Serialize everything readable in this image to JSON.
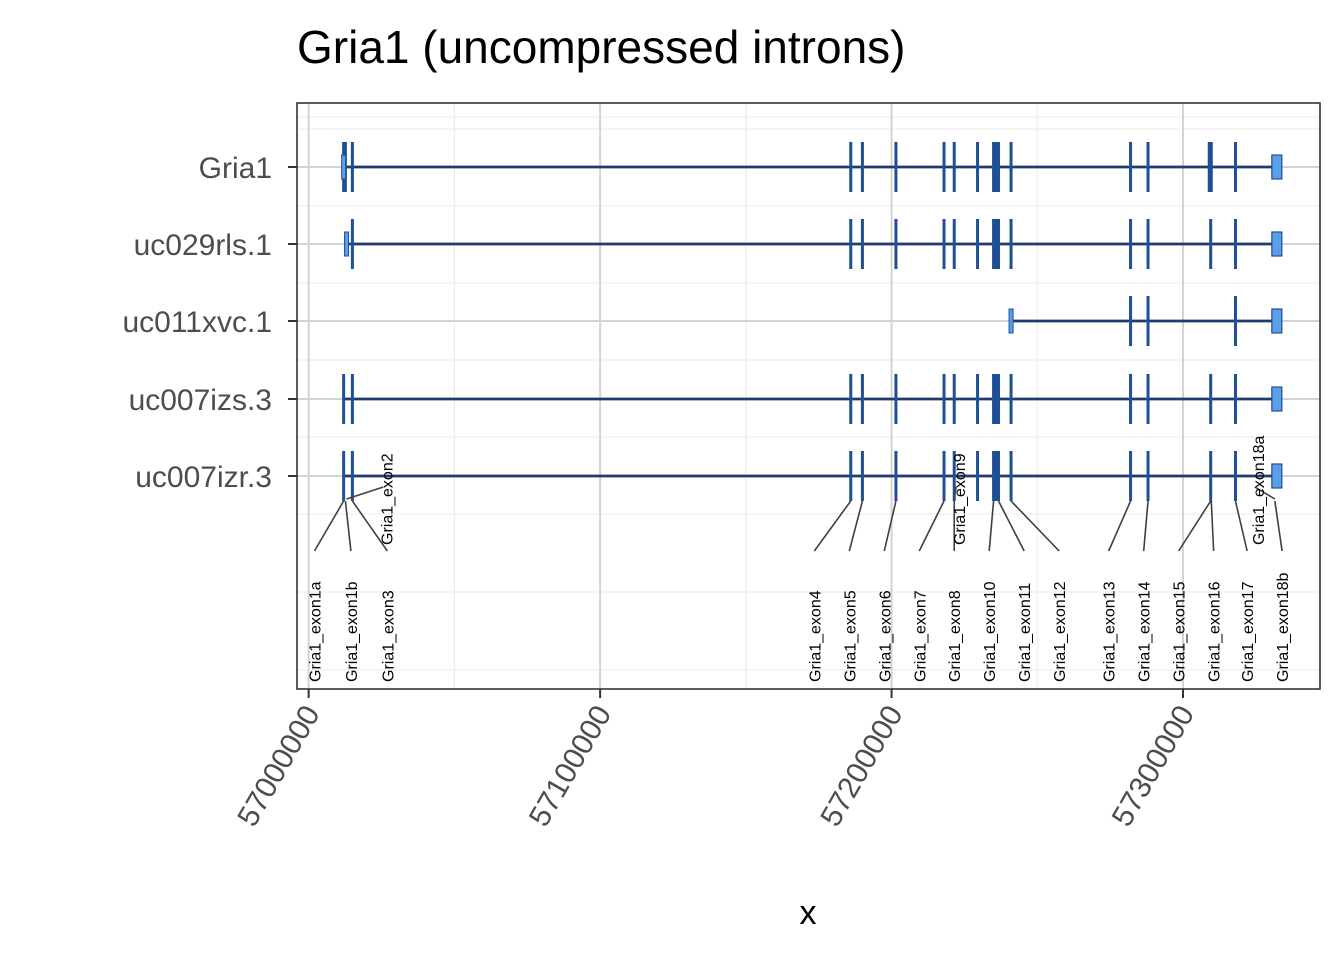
{
  "chart_data": {
    "type": "gene-model",
    "title": "Gria1 (uncompressed introns)",
    "xlabel": "x",
    "ylabel": "",
    "xlim": [
      56996000,
      57347000
    ],
    "x_ticks": [
      57000000,
      57100000,
      57200000,
      57300000
    ],
    "x_tick_labels": [
      "57000000",
      "57100000",
      "57200000",
      "57300000"
    ],
    "grid": true,
    "colors": {
      "line": "#1d3b6e",
      "exon": "#1f4f94",
      "utr": "#5b9fe8",
      "panel_border": "#333333"
    },
    "transcripts": [
      {
        "id": "Gria1",
        "start": 57012000,
        "end": 57332000,
        "exons": [
          57012000,
          57012600,
          57015000,
          57186000,
          57190000,
          57201500,
          57218000,
          57221500,
          57229500,
          57235000,
          57236000,
          57236700,
          57241000,
          57282000,
          57288000,
          57309000,
          57309700,
          57318000
        ],
        "utr": [
          57012000,
          57331500
        ]
      },
      {
        "id": "uc029rls.1",
        "start": 57013000,
        "end": 57332000,
        "exons": [
          57015000,
          57186000,
          57190000,
          57201500,
          57218000,
          57221500,
          57229500,
          57235000,
          57236000,
          57236700,
          57241000,
          57282000,
          57288000,
          57309500,
          57318000
        ],
        "utr": [
          57013000,
          57331500
        ]
      },
      {
        "id": "uc011xvc.1",
        "start": 57241000,
        "end": 57332000,
        "exons": [
          57282000,
          57288000,
          57318000
        ],
        "utr": [
          57241000,
          57331500
        ]
      },
      {
        "id": "uc007izs.3",
        "start": 57012000,
        "end": 57332000,
        "exons": [
          57012000,
          57015000,
          57186000,
          57190000,
          57201500,
          57218000,
          57221500,
          57229500,
          57235000,
          57236000,
          57236700,
          57241000,
          57282000,
          57288000,
          57309500,
          57318000
        ],
        "utr": [
          57331500
        ]
      },
      {
        "id": "uc007izr.3",
        "start": 57012000,
        "end": 57332000,
        "exons": [
          57012000,
          57015000,
          57186000,
          57190000,
          57201500,
          57218000,
          57221500,
          57229500,
          57235000,
          57236000,
          57236700,
          57241000,
          57282000,
          57288000,
          57309500,
          57318000
        ],
        "utr": [
          57331500
        ]
      }
    ],
    "exon_labels": [
      {
        "text": "Gria1_exon1a",
        "x": 57012000,
        "label_x": 57002000
      },
      {
        "text": "Gria1_exon1b",
        "x": 57012600,
        "label_x": 57014500
      },
      {
        "text": "Gria1_exon2",
        "x": 57013000,
        "label_x": 57027000,
        "above": true
      },
      {
        "text": "Gria1_exon3",
        "x": 57015000,
        "label_x": 57027000
      },
      {
        "text": "Gria1_exon4",
        "x": 57186000,
        "label_x": 57173500
      },
      {
        "text": "Gria1_exon5",
        "x": 57190000,
        "label_x": 57185500
      },
      {
        "text": "Gria1_exon6",
        "x": 57201500,
        "label_x": 57197500
      },
      {
        "text": "Gria1_exon7",
        "x": 57218000,
        "label_x": 57209500
      },
      {
        "text": "Gria1_exon8",
        "x": 57221500,
        "label_x": 57221500
      },
      {
        "text": "Gria1_exon9",
        "x": 57221500,
        "label_x": 57223500,
        "above": true
      },
      {
        "text": "Gria1_exon10",
        "x": 57235000,
        "label_x": 57233500
      },
      {
        "text": "Gria1_exon11",
        "x": 57236700,
        "label_x": 57245500
      },
      {
        "text": "Gria1_exon12",
        "x": 57241000,
        "label_x": 57257500
      },
      {
        "text": "Gria1_exon13",
        "x": 57282000,
        "label_x": 57274500
      },
      {
        "text": "Gria1_exon14",
        "x": 57288000,
        "label_x": 57286500
      },
      {
        "text": "Gria1_exon15",
        "x": 57309500,
        "label_x": 57298500
      },
      {
        "text": "Gria1_exon16",
        "x": 57309700,
        "label_x": 57310500
      },
      {
        "text": "Gria1_exon17",
        "x": 57318000,
        "label_x": 57322000
      },
      {
        "text": "Gria1_exon18a",
        "x": 57331500,
        "label_x": 57326000,
        "above": true
      },
      {
        "text": "Gria1_exon18b",
        "x": 57331500,
        "label_x": 57334000
      }
    ]
  }
}
